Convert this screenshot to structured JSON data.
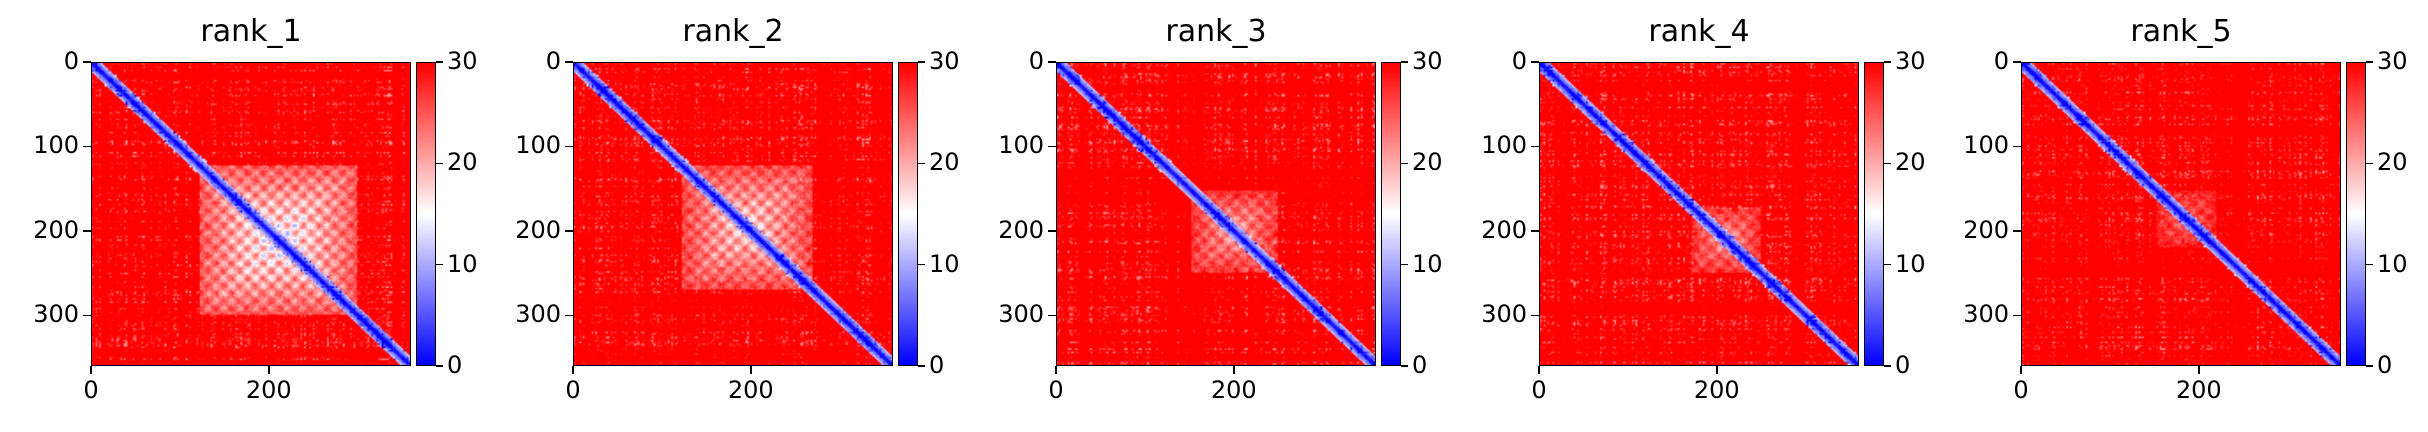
{
  "chart_data": [
    {
      "type": "heatmap",
      "title": "rank_1",
      "x_ticks": [
        0,
        200
      ],
      "y_ticks": [
        0,
        100,
        200,
        300
      ],
      "xlim": [
        0,
        360
      ],
      "ylim": [
        360,
        0
      ],
      "colorbar": {
        "min": 0,
        "max": 30,
        "ticks": [
          0,
          10,
          20,
          30
        ],
        "colormap": "bwr"
      },
      "low_region": {
        "start": 120,
        "end": 300,
        "strength": 0.9
      }
    },
    {
      "type": "heatmap",
      "title": "rank_2",
      "x_ticks": [
        0,
        200
      ],
      "y_ticks": [
        0,
        100,
        200,
        300
      ],
      "xlim": [
        0,
        360
      ],
      "ylim": [
        360,
        0
      ],
      "colorbar": {
        "min": 0,
        "max": 30,
        "ticks": [
          0,
          10,
          20,
          30
        ],
        "colormap": "bwr"
      },
      "low_region": {
        "start": 120,
        "end": 270,
        "strength": 0.75
      }
    },
    {
      "type": "heatmap",
      "title": "rank_3",
      "x_ticks": [
        0,
        200
      ],
      "y_ticks": [
        0,
        100,
        200,
        300
      ],
      "xlim": [
        0,
        360
      ],
      "ylim": [
        360,
        0
      ],
      "colorbar": {
        "min": 0,
        "max": 30,
        "ticks": [
          0,
          10,
          20,
          30
        ],
        "colormap": "bwr"
      },
      "low_region": {
        "start": 150,
        "end": 250,
        "strength": 0.6
      }
    },
    {
      "type": "heatmap",
      "title": "rank_4",
      "x_ticks": [
        0,
        200
      ],
      "y_ticks": [
        0,
        100,
        200,
        300
      ],
      "xlim": [
        0,
        360
      ],
      "ylim": [
        360,
        0
      ],
      "colorbar": {
        "min": 0,
        "max": 30,
        "ticks": [
          0,
          10,
          20,
          30
        ],
        "colormap": "bwr"
      },
      "low_region": {
        "start": 170,
        "end": 250,
        "strength": 0.55
      }
    },
    {
      "type": "heatmap",
      "title": "rank_5",
      "x_ticks": [
        0,
        200
      ],
      "y_ticks": [
        0,
        100,
        200,
        300
      ],
      "xlim": [
        0,
        360
      ],
      "ylim": [
        360,
        0
      ],
      "colorbar": {
        "min": 0,
        "max": 30,
        "ticks": [
          0,
          10,
          20,
          30
        ],
        "colormap": "bwr"
      },
      "low_region": {
        "start": 150,
        "end": 220,
        "strength": 0.4
      }
    }
  ],
  "colors": {
    "low": "#0000ff",
    "mid": "#ffffff",
    "high": "#ff0000"
  }
}
